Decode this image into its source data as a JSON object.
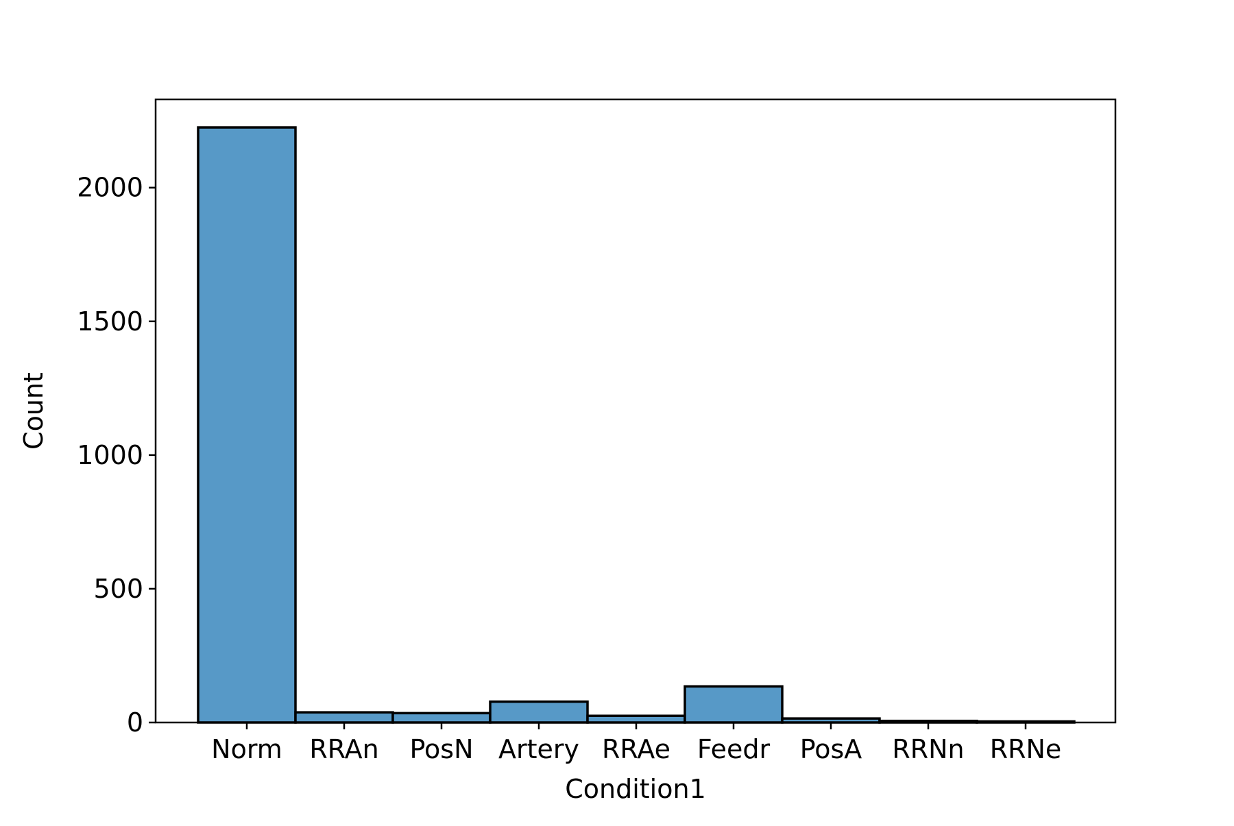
{
  "chart_data": {
    "type": "bar",
    "title": "",
    "xlabel": "Condition1",
    "ylabel": "Count",
    "categories": [
      "Norm",
      "RRAn",
      "PosN",
      "Artery",
      "RRAe",
      "Feedr",
      "PosA",
      "RRNn",
      "RRNe"
    ],
    "values": [
      2225,
      38,
      35,
      78,
      25,
      135,
      15,
      6,
      4
    ],
    "ylim": [
      0,
      2330
    ],
    "yticks": [
      0,
      500,
      1000,
      1500,
      2000
    ],
    "grid": false,
    "bar_color": "#5799c7",
    "edge_color": "#000000"
  }
}
